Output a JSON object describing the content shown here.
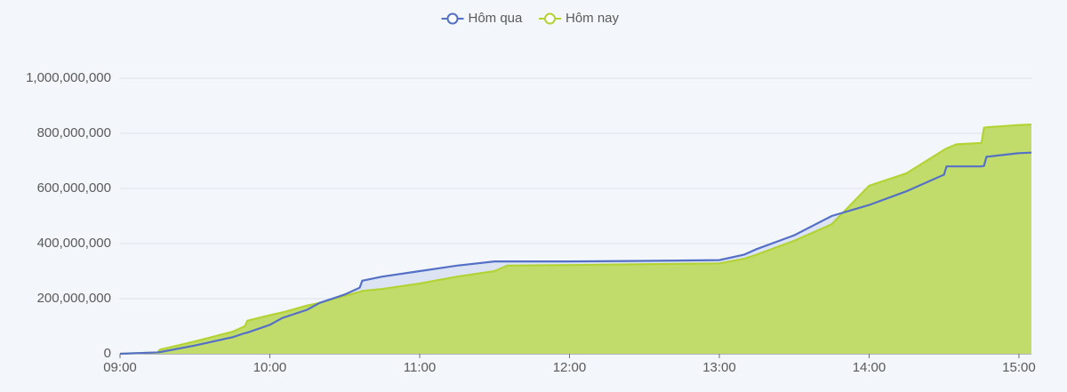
{
  "chart_data": {
    "type": "area",
    "x": [
      "09:00",
      "09:15",
      "09:16",
      "09:30",
      "09:45",
      "09:50",
      "09:51",
      "10:00",
      "10:05",
      "10:15",
      "10:20",
      "10:30",
      "10:36",
      "10:37",
      "10:45",
      "11:00",
      "11:15",
      "11:30",
      "11:35",
      "12:00",
      "12:30",
      "13:00",
      "13:10",
      "13:15",
      "13:30",
      "13:45",
      "14:00",
      "14:15",
      "14:30",
      "14:31",
      "14:35",
      "14:45",
      "14:46",
      "14:47",
      "15:00",
      "15:05"
    ],
    "series": [
      {
        "name": "Hôm qua",
        "color": "#5470c6",
        "fill": "#dce4f4",
        "values": [
          0,
          5000000,
          6000000,
          30000000,
          60000000,
          75000000,
          77000000,
          105000000,
          130000000,
          160000000,
          185000000,
          215000000,
          240000000,
          265000000,
          280000000,
          300000000,
          320000000,
          335000000,
          335000000,
          335000000,
          337000000,
          340000000,
          360000000,
          380000000,
          430000000,
          500000000,
          540000000,
          590000000,
          650000000,
          680000000,
          680000000,
          680000000,
          682000000,
          715000000,
          728000000,
          730000000
        ]
      },
      {
        "name": "Hôm nay",
        "color": "#b3d335",
        "fill": "#c2dc6c",
        "values": [
          0,
          5000000,
          15000000,
          45000000,
          80000000,
          100000000,
          120000000,
          140000000,
          150000000,
          175000000,
          185000000,
          210000000,
          225000000,
          228000000,
          235000000,
          255000000,
          280000000,
          300000000,
          320000000,
          322000000,
          325000000,
          328000000,
          345000000,
          360000000,
          410000000,
          470000000,
          610000000,
          655000000,
          740000000,
          745000000,
          760000000,
          765000000,
          820000000,
          822000000,
          830000000,
          832000000
        ]
      }
    ],
    "xlim": [
      "09:00",
      "15:05"
    ],
    "xticks": [
      "09:00",
      "10:00",
      "11:00",
      "12:00",
      "13:00",
      "14:00",
      "15:00"
    ],
    "ylim": [
      0,
      1000000000
    ],
    "yticks": [
      0,
      {
        "value": 200000000,
        "label": "200,000,000"
      },
      {
        "value": 400000000,
        "label": "400,000,000"
      },
      {
        "value": 600000000,
        "label": "600,000,000"
      },
      {
        "value": 800000000,
        "label": "800,000,000"
      },
      {
        "value": 1000000000,
        "label": "1,000,000,000"
      }
    ],
    "grid": true,
    "legend": "top"
  }
}
